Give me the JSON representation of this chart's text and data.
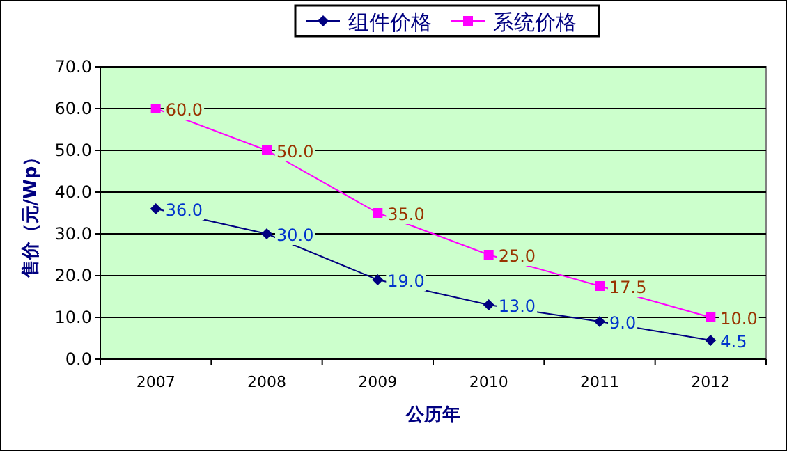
{
  "chart_data": {
    "type": "line",
    "xlabel": "公历年",
    "ylabel": "售价（元/Wp）",
    "categories": [
      "2007",
      "2008",
      "2009",
      "2010",
      "2011",
      "2012"
    ],
    "series": [
      {
        "name": "组件价格",
        "color": "#000080",
        "values": [
          36.0,
          30.0,
          19.0,
          13.0,
          9.0,
          4.5
        ],
        "marker": "diamond",
        "value_labels": [
          "36.0",
          "30.0",
          "19.0",
          "13.0",
          "9.0",
          "4.5"
        ]
      },
      {
        "name": "系统价格",
        "color": "#ff00ff",
        "values": [
          60.0,
          50.0,
          35.0,
          25.0,
          17.5,
          10.0
        ],
        "marker": "square",
        "value_labels": [
          "60.0",
          "50.0",
          "35.0",
          "25.0",
          "17.5",
          "10.0"
        ]
      }
    ],
    "ylim": [
      0,
      70
    ],
    "yticks": [
      {
        "value": 0,
        "label": "0.0"
      },
      {
        "value": 10,
        "label": "10.0"
      },
      {
        "value": 20,
        "label": "20.0"
      },
      {
        "value": 30,
        "label": "30.0"
      },
      {
        "value": 40,
        "label": "40.0"
      },
      {
        "value": 50,
        "label": "50.0"
      },
      {
        "value": 60,
        "label": "60.0"
      },
      {
        "value": 70,
        "label": "70.0"
      }
    ],
    "grid": "y",
    "legend": "top",
    "line_style": "solid"
  }
}
